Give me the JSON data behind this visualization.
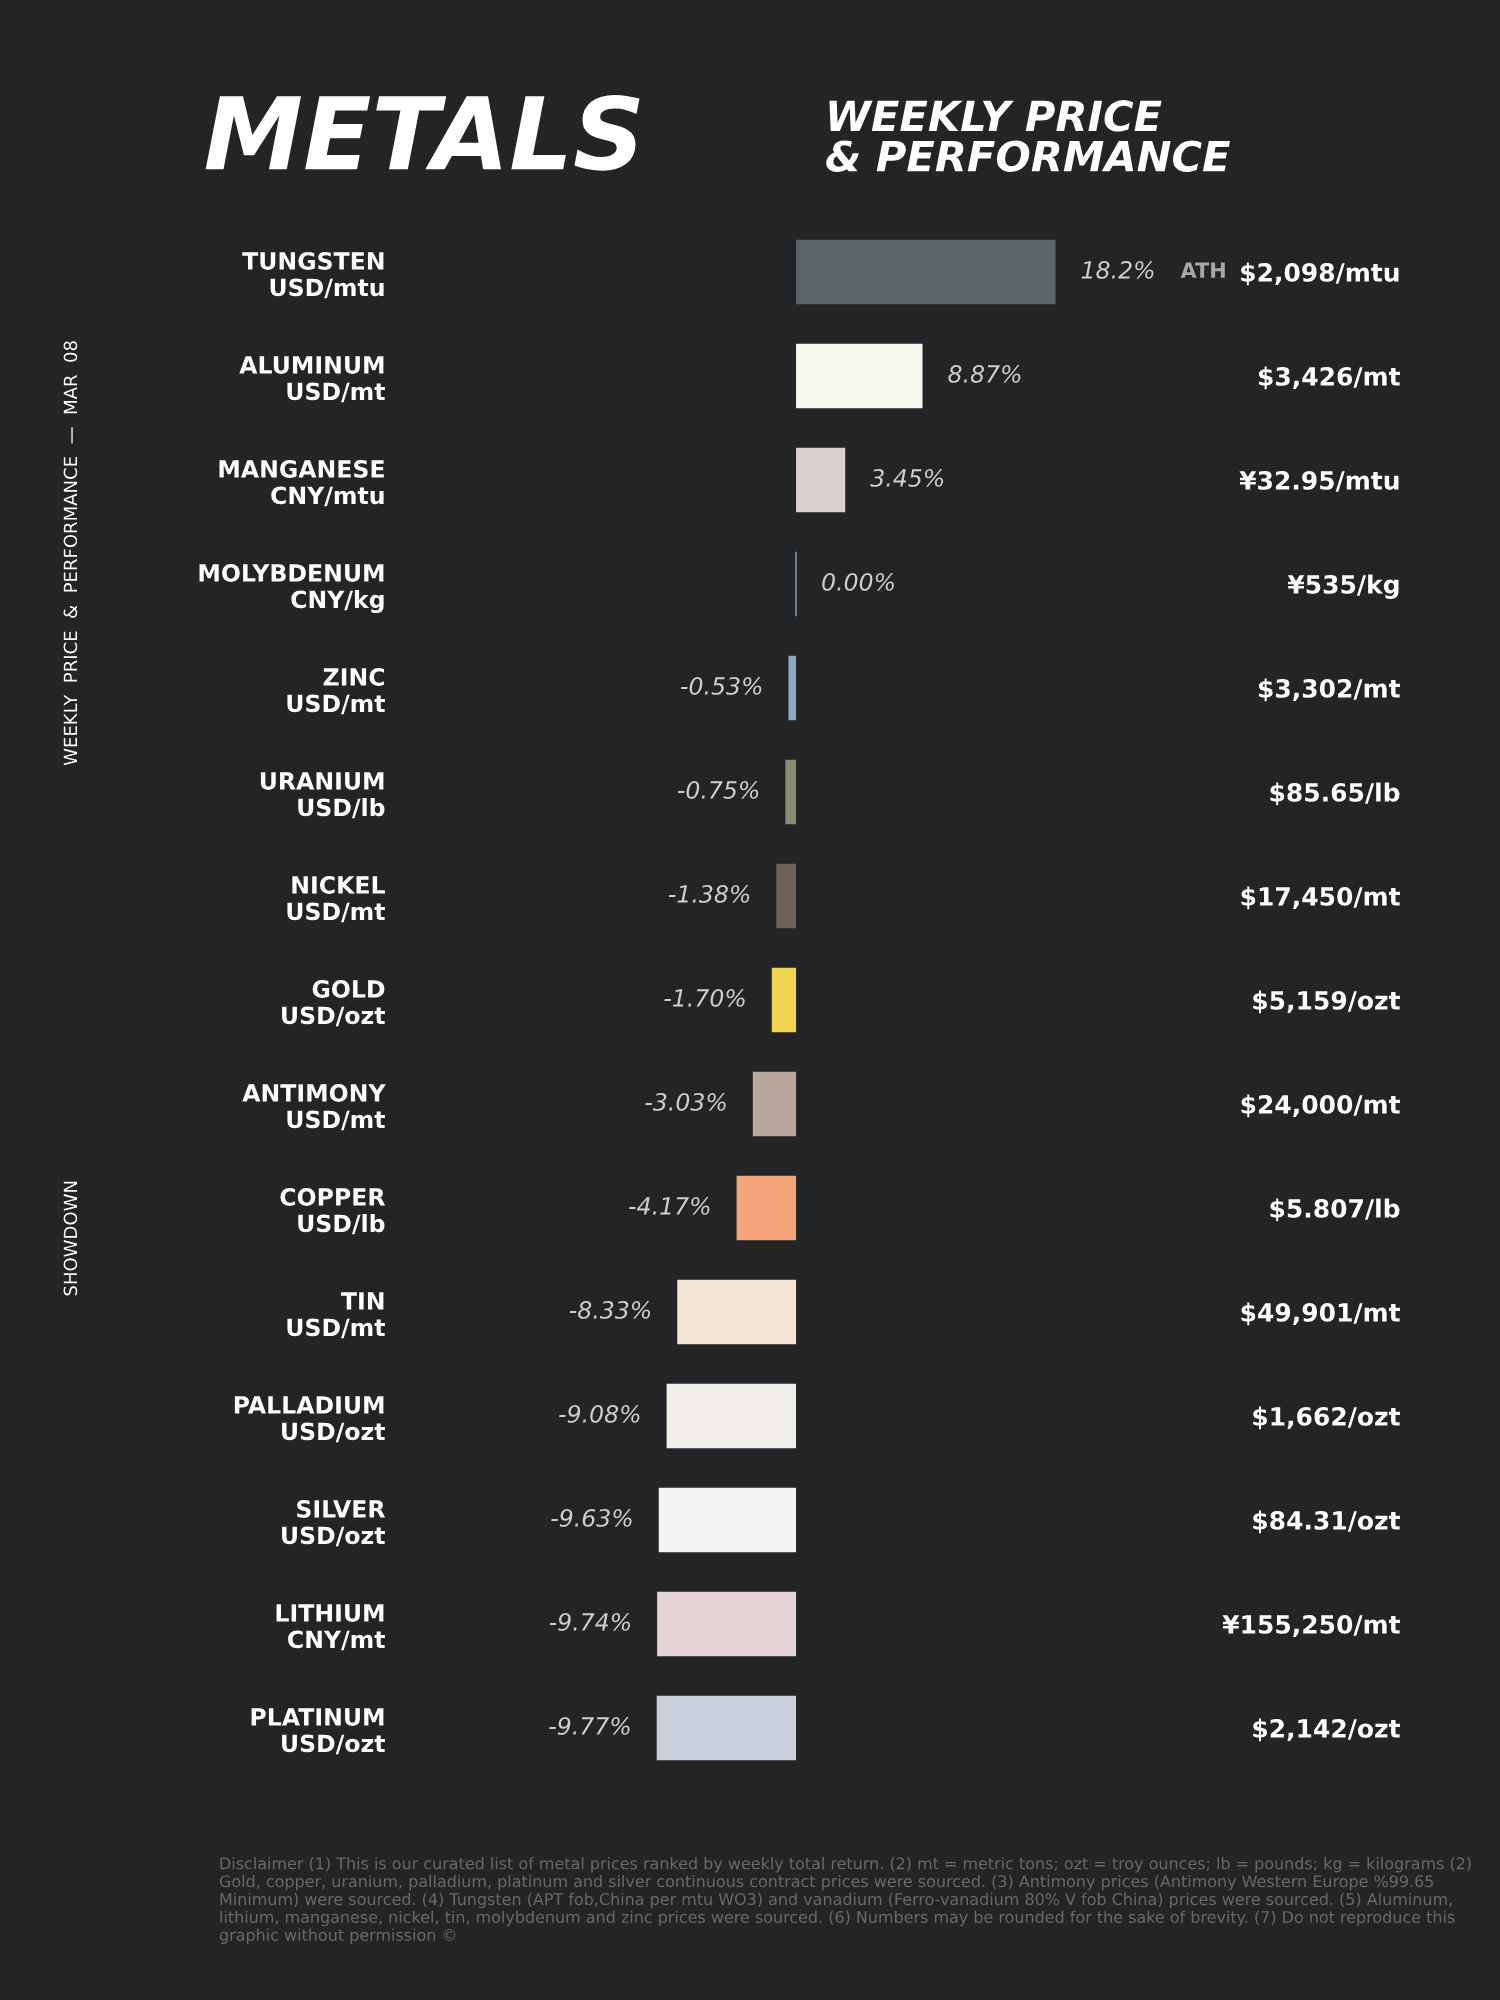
{
  "chart_data": {
    "type": "bar",
    "orientation": "horizontal",
    "title": "METALS",
    "subtitle": "WEEKLY PRICE\n& PERFORMANCE",
    "categories": [
      "TUNGSTEN\nUSD/mtu",
      "ALUMINUM\nUSD/mt",
      "MANGANESE\nCNY/mtu",
      "MOLYBDENUM\nCNY/kg",
      "ZINC\nUSD/mt",
      "URANIUM\nUSD/lb",
      "NICKEL\nUSD/mt",
      "GOLD\nUSD/ozt",
      "ANTIMONY\nUSD/mt",
      "COPPER\nUSD/lb",
      "TIN\nUSD/mt",
      "PALLADIUM\nUSD/ozt",
      "SILVER\nUSD/ozt",
      "LITHIUM\nCNY/mt",
      "PLATINUM\nUSD/ozt"
    ],
    "y2_categories": [
      "$2,098/mtu",
      "$3,426/mt",
      "¥32.95/mtu",
      "¥535/kg",
      "$3,302/mt",
      "$85.65/lb",
      "$17,450/mt",
      "$5,159/ozt",
      "$24,000/mt",
      "$5.807/lb",
      "$49,901/mt",
      "$1,662/ozt",
      "$84.31/ozt",
      "¥155,250/mt",
      "$2,142/ozt"
    ],
    "values": [
      18.2,
      8.87,
      3.45,
      0.0,
      -0.53,
      -0.75,
      -1.38,
      -1.7,
      -3.03,
      -4.17,
      -8.33,
      -9.08,
      -9.63,
      -9.74,
      -9.77
    ],
    "value_labels": [
      "18.2%",
      "8.87%",
      "3.45%",
      "0.00%",
      "-0.53%",
      "-0.75%",
      "-1.38%",
      "-1.70%",
      "-3.03%",
      "-4.17%",
      "-8.33%",
      "-9.08%",
      "-9.63%",
      "-9.74%",
      "-9.77%"
    ],
    "colors": [
      "#5d6468",
      "#f7f6ee",
      "#d9cfcf",
      "#8fa4ae",
      "#8fa9c2",
      "#8a8c72",
      "#6f6259",
      "#f1d44e",
      "#b9a69c",
      "#f4a57c",
      "#f3e4d4",
      "#f2eeea",
      "#f4f4f4",
      "#e6d3d6",
      "#c9d0dc"
    ],
    "annotations": [
      "WEEKLY  PRICE  &  PERFORMANCE  —  MAR  08",
      "SHOWDOWN",
      "ATH",
      "Disclaimer (1) This is our curated list of metal prices ranked by weekly total return. (2) mt = metric tons; ozt = troy ounces; lb = pounds; kg = kilograms (2) Gold, copper, uranium, palladium, platinum and silver continuous contract prices were sourced. (3) Antimony prices (Antimony Western Europe %99.65 Minimum) were sourced. (4) Tungsten (APT fob,China per mtu WO3) and vanadium (Ferro-vanadium 80% V fob China) prices were sourced. (5) Aluminum, lithium, manganese, nickel, tin, molybdenum and zinc prices were sourced. (6) Numbers may be rounded for the sake of brevity. (7) Do not reproduce this graphic without permission ©"
    ],
    "grid": false,
    "legend": false
  }
}
